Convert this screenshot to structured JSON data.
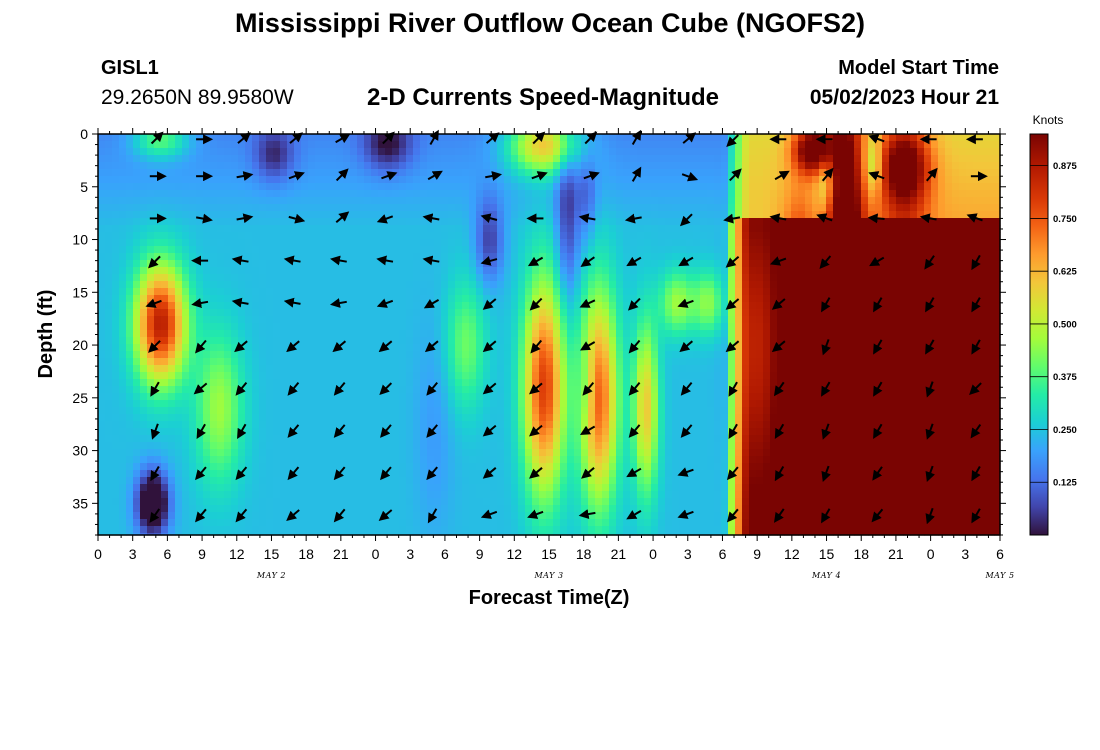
{
  "header": {
    "title": "Mississippi River Outflow Ocean Cube (NGOFS2)",
    "station": "GISL1",
    "coords": "29.2650N  89.9580W",
    "subtitle": "2-D Currents Speed-Magnitude",
    "model_start_label": "Model Start Time",
    "model_start_value": "05/02/2023 Hour 21"
  },
  "footer": {
    "title": "Mississippi River Outflow Ocean Cube (NGOFS2)"
  },
  "chart_data": {
    "type": "heatmap",
    "xlabel": "Forecast Time(Z)",
    "ylabel": "Depth (ft)",
    "x_ticks": [
      "0",
      "3",
      "6",
      "9",
      "12",
      "15",
      "18",
      "21",
      "0",
      "3",
      "6",
      "9",
      "12",
      "15",
      "18",
      "21",
      "0",
      "3",
      "6",
      "9",
      "12",
      "15",
      "18",
      "21",
      "0",
      "3",
      "6"
    ],
    "day_labels": [
      {
        "label": "MAY 2",
        "hour": 15
      },
      {
        "label": "MAY 3",
        "hour": 39
      },
      {
        "label": "MAY 4",
        "hour": 63
      },
      {
        "label": "MAY 5",
        "hour": 78
      }
    ],
    "x_range_hours": [
      0,
      78
    ],
    "y_ticks": [
      0,
      5,
      10,
      15,
      20,
      25,
      30,
      35
    ],
    "y_range_ft": [
      0,
      38
    ],
    "colorbar": {
      "unit": "Knots",
      "range": [
        0,
        0.95
      ],
      "ticks": [
        "0.125",
        "0.250",
        "0.375",
        "0.500",
        "0.625",
        "0.750",
        "0.875"
      ],
      "tick_values": [
        0.125,
        0.25,
        0.375,
        0.5,
        0.625,
        0.75,
        0.875
      ]
    },
    "arrow_times_hours": [
      5,
      9,
      12.5,
      17,
      21,
      25,
      29,
      34,
      38,
      42.5,
      46.5,
      51,
      55,
      59,
      63,
      67.5,
      72,
      76
    ],
    "arrow_depths_ft": [
      0.5,
      4,
      8,
      12,
      16,
      20,
      24,
      28,
      32,
      36
    ],
    "arrow_directions_deg": [
      [
        315,
        0,
        320,
        320,
        330,
        315,
        300,
        320,
        315,
        315,
        300,
        320,
        135,
        180,
        180,
        200,
        180,
        180
      ],
      [
        0,
        0,
        350,
        340,
        315,
        340,
        330,
        350,
        340,
        340,
        300,
        20,
        315,
        330,
        310,
        200,
        310,
        0
      ],
      [
        0,
        10,
        350,
        15,
        320,
        160,
        190,
        195,
        180,
        190,
        170,
        135,
        170,
        190,
        200,
        185,
        190,
        200
      ],
      [
        135,
        180,
        190,
        190,
        190,
        190,
        190,
        165,
        150,
        145,
        150,
        150,
        140,
        160,
        130,
        150,
        125,
        120
      ],
      [
        160,
        170,
        190,
        190,
        170,
        160,
        150,
        140,
        135,
        155,
        135,
        160,
        140,
        140,
        120,
        120,
        120,
        120
      ],
      [
        135,
        130,
        140,
        140,
        140,
        140,
        140,
        140,
        130,
        150,
        130,
        140,
        140,
        140,
        110,
        120,
        120,
        120
      ],
      [
        120,
        140,
        130,
        130,
        130,
        135,
        130,
        140,
        140,
        130,
        130,
        130,
        120,
        125,
        120,
        120,
        110,
        135
      ],
      [
        110,
        120,
        120,
        130,
        130,
        130,
        130,
        140,
        140,
        150,
        130,
        130,
        120,
        120,
        110,
        120,
        110,
        125
      ],
      [
        120,
        130,
        130,
        130,
        130,
        130,
        130,
        140,
        140,
        140,
        150,
        160,
        130,
        120,
        110,
        125,
        110,
        120
      ],
      [
        125,
        130,
        130,
        140,
        130,
        140,
        120,
        160,
        160,
        170,
        150,
        160,
        130,
        125,
        120,
        130,
        110,
        120
      ]
    ]
  }
}
